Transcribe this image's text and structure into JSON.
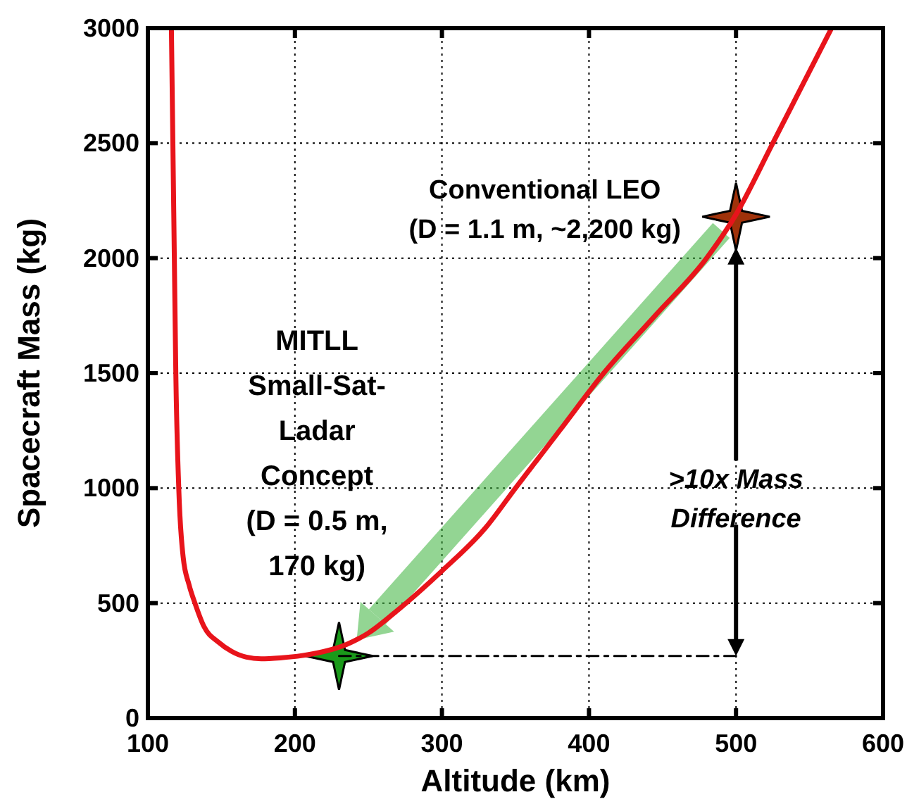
{
  "chart_data": {
    "type": "line",
    "xlabel": "Altitude (km)",
    "ylabel": "Spacecraft Mass (kg)",
    "xlim": [
      100,
      600
    ],
    "xticks": [
      100,
      200,
      300,
      400,
      500,
      600
    ],
    "ylim": [
      0,
      3000
    ],
    "yticks": [
      0,
      500,
      1000,
      1500,
      2000,
      2500,
      3000
    ],
    "grid": true,
    "series": [
      {
        "color": "#e8141b",
        "x": [
          116,
          117,
          118,
          119,
          121,
          124,
          128,
          132,
          138,
          148,
          157,
          167,
          177,
          190,
          205,
          220,
          235,
          250,
          270,
          300,
          330,
          350,
          380,
          410,
          445,
          480,
          500,
          525,
          545,
          565
        ],
        "values": [
          3000,
          2500,
          2000,
          1500,
          1000,
          700,
          580,
          500,
          400,
          330,
          290,
          265,
          258,
          262,
          272,
          290,
          320,
          370,
          470,
          640,
          830,
          1000,
          1250,
          1500,
          1750,
          2000,
          2190,
          2500,
          2750,
          3000
        ]
      },
      {
        "type": "line",
        "color": "#000000",
        "line_style": "dashed",
        "x": [
          230,
          500
        ],
        "values": [
          270,
          270
        ]
      },
      {
        "type": "scatter",
        "marker": "star",
        "color": "#1a9a1a",
        "x": [
          230
        ],
        "values": [
          270
        ]
      },
      {
        "type": "scatter",
        "marker": "star",
        "color": "#a0320a",
        "x": [
          500
        ],
        "values": [
          2180
        ]
      }
    ],
    "annotations": [
      "Conventional LEO\n(D = 1.1 m, ~2,200 kg)",
      "MITLL\nSmall-Sat-\nLadar\nConcept\n(D = 0.5 m,\n170 kg)",
      ">10x Mass\nDifference"
    ]
  }
}
